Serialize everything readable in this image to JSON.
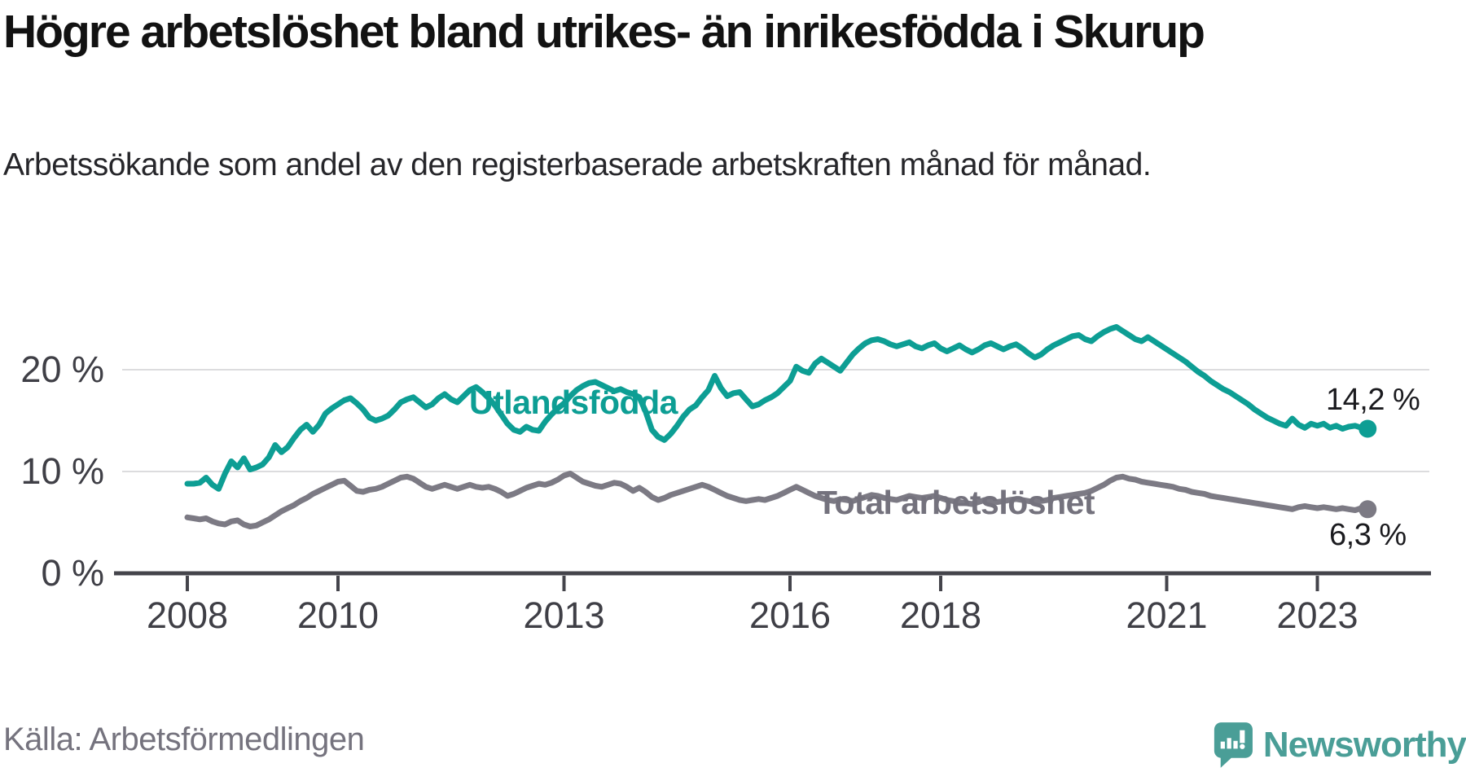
{
  "branding": {
    "wordmark": "Newsworthy"
  },
  "chart_data": {
    "type": "line",
    "title": "Högre arbetslöshet bland utrikes- än inrikesfödda i Skurup",
    "subtitle": "Arbetssökande som andel av den registerbaserade arbetskraften månad för månad.",
    "source": "Källa: Arbetsförmedlingen",
    "x_axis": {
      "unit": "year",
      "frequency": "monthly",
      "start": "2008-01",
      "end": "2023-09",
      "tick_years": [
        2008,
        2010,
        2013,
        2016,
        2018,
        2021,
        2023
      ],
      "tick_labels": [
        "2008",
        "2010",
        "2013",
        "2016",
        "2018",
        "2021",
        "2023"
      ]
    },
    "y_axis": {
      "unit": "%",
      "ticks": [
        0,
        10,
        20
      ],
      "tick_labels": [
        "0 %",
        "10 %",
        "20 %"
      ],
      "range": [
        0,
        25
      ],
      "grid": true
    },
    "series": [
      {
        "id": "utlandsfodda",
        "name": "Utlandsfödda",
        "color": "#0d9e94",
        "end_value": 14.2,
        "end_label": "14,2 %",
        "values": [
          8.8,
          8.8,
          8.9,
          9.4,
          8.7,
          8.3,
          9.8,
          11.0,
          10.4,
          11.3,
          10.2,
          10.4,
          10.7,
          11.4,
          12.6,
          11.9,
          12.4,
          13.3,
          14.1,
          14.6,
          13.9,
          14.6,
          15.7,
          16.2,
          16.6,
          17.0,
          17.2,
          16.7,
          16.1,
          15.3,
          15.0,
          15.2,
          15.5,
          16.1,
          16.8,
          17.1,
          17.3,
          16.8,
          16.3,
          16.6,
          17.2,
          17.6,
          17.1,
          16.8,
          17.4,
          18.0,
          18.3,
          17.8,
          17.2,
          16.5,
          15.6,
          14.7,
          14.1,
          13.9,
          14.4,
          14.1,
          14.0,
          14.9,
          15.6,
          16.2,
          16.7,
          17.4,
          18.0,
          18.4,
          18.7,
          18.8,
          18.5,
          18.2,
          17.9,
          18.1,
          17.8,
          17.6,
          17.3,
          15.9,
          14.1,
          13.4,
          13.1,
          13.7,
          14.5,
          15.4,
          16.1,
          16.5,
          17.3,
          18.0,
          19.4,
          18.2,
          17.4,
          17.7,
          17.8,
          17.1,
          16.4,
          16.6,
          17.0,
          17.3,
          17.7,
          18.3,
          18.9,
          20.3,
          19.9,
          19.7,
          20.6,
          21.1,
          20.7,
          20.3,
          19.9,
          20.7,
          21.5,
          22.1,
          22.6,
          22.9,
          23.0,
          22.8,
          22.5,
          22.3,
          22.5,
          22.7,
          22.3,
          22.1,
          22.4,
          22.6,
          22.1,
          21.8,
          22.1,
          22.4,
          22.0,
          21.7,
          22.0,
          22.4,
          22.6,
          22.3,
          22.0,
          22.3,
          22.5,
          22.1,
          21.6,
          21.2,
          21.5,
          22.0,
          22.4,
          22.7,
          23.0,
          23.3,
          23.4,
          23.0,
          22.8,
          23.3,
          23.7,
          24.0,
          24.2,
          23.8,
          23.4,
          23.0,
          22.8,
          23.2,
          22.8,
          22.4,
          22.0,
          21.6,
          21.2,
          20.8,
          20.3,
          19.8,
          19.4,
          18.9,
          18.5,
          18.1,
          17.8,
          17.4,
          17.0,
          16.6,
          16.1,
          15.7,
          15.3,
          15.0,
          14.7,
          14.5,
          15.2,
          14.6,
          14.3,
          14.7,
          14.5,
          14.7,
          14.3,
          14.5,
          14.2,
          14.4,
          14.5,
          14.3,
          14.2
        ]
      },
      {
        "id": "total",
        "name": "Total arbetslöshet",
        "color": "#7c7a84",
        "label_color": "#74727d",
        "end_value": 6.3,
        "end_label": "6,3 %",
        "values": [
          5.5,
          5.4,
          5.3,
          5.4,
          5.1,
          4.9,
          4.8,
          5.1,
          5.2,
          4.8,
          4.6,
          4.7,
          5.0,
          5.3,
          5.7,
          6.1,
          6.4,
          6.7,
          7.1,
          7.4,
          7.8,
          8.1,
          8.4,
          8.7,
          9.0,
          9.1,
          8.6,
          8.1,
          8.0,
          8.2,
          8.3,
          8.5,
          8.8,
          9.1,
          9.4,
          9.5,
          9.3,
          8.9,
          8.5,
          8.3,
          8.5,
          8.7,
          8.5,
          8.3,
          8.5,
          8.7,
          8.5,
          8.4,
          8.5,
          8.3,
          8.0,
          7.6,
          7.8,
          8.1,
          8.4,
          8.6,
          8.8,
          8.7,
          8.9,
          9.2,
          9.6,
          9.8,
          9.4,
          9.0,
          8.8,
          8.6,
          8.5,
          8.7,
          8.9,
          8.8,
          8.5,
          8.1,
          8.4,
          8.0,
          7.5,
          7.2,
          7.4,
          7.7,
          7.9,
          8.1,
          8.3,
          8.5,
          8.7,
          8.5,
          8.2,
          7.9,
          7.6,
          7.4,
          7.2,
          7.1,
          7.2,
          7.3,
          7.2,
          7.4,
          7.6,
          7.9,
          8.2,
          8.5,
          8.2,
          7.9,
          7.6,
          7.4,
          7.2,
          7.1,
          7.3,
          7.2,
          7.1,
          7.3,
          7.5,
          7.7,
          7.6,
          7.4,
          7.3,
          7.2,
          7.4,
          7.6,
          7.5,
          7.4,
          7.5,
          7.6,
          7.4,
          7.2,
          7.1,
          7.0,
          6.9,
          6.8,
          7.0,
          7.2,
          7.1,
          7.0,
          7.1,
          7.2,
          7.3,
          7.2,
          7.1,
          7.0,
          7.1,
          7.2,
          7.4,
          7.5,
          7.6,
          7.7,
          7.8,
          7.9,
          8.1,
          8.4,
          8.7,
          9.1,
          9.4,
          9.5,
          9.3,
          9.2,
          9.0,
          8.9,
          8.8,
          8.7,
          8.6,
          8.5,
          8.3,
          8.2,
          8.0,
          7.9,
          7.8,
          7.6,
          7.5,
          7.4,
          7.3,
          7.2,
          7.1,
          7.0,
          6.9,
          6.8,
          6.7,
          6.6,
          6.5,
          6.4,
          6.3,
          6.5,
          6.6,
          6.5,
          6.4,
          6.5,
          6.4,
          6.3,
          6.4,
          6.3,
          6.2,
          6.4,
          6.3
        ]
      }
    ],
    "style": {
      "grid_color": "#dcdcde",
      "axis_color": "#44444b",
      "tick_label_color": "#3f3f46",
      "annotation_color": "#1b1b1f"
    }
  }
}
